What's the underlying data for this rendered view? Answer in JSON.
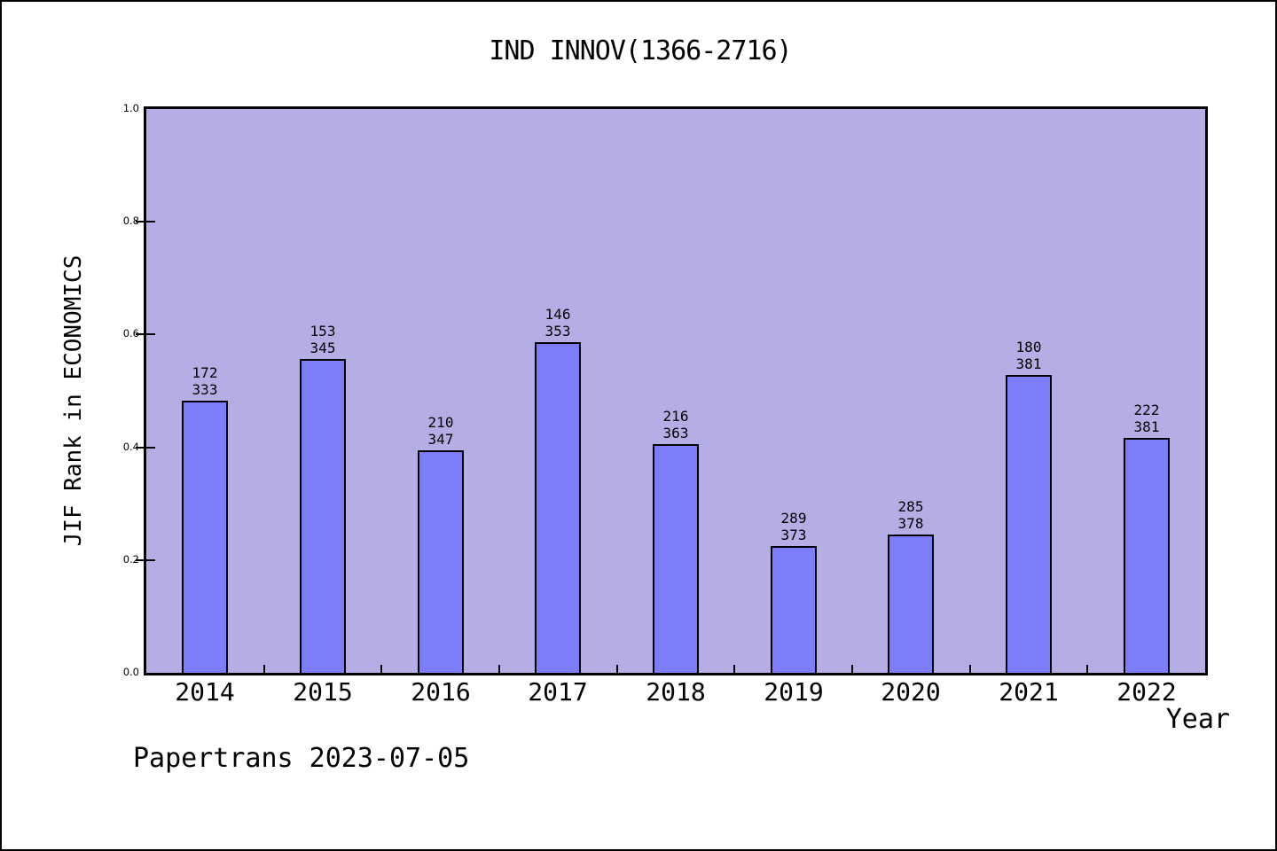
{
  "title": "IND INNOV(1366-2716)",
  "footer": "Papertrans 2023-07-05",
  "colors": {
    "bar_fill": "#7d7dfa",
    "bar_border": "#000000",
    "plot_background": "#b5aee4",
    "frame_border": "#000000",
    "text": "#000000"
  },
  "chart_data": {
    "type": "bar",
    "title": "IND INNOV(1366-2716)",
    "xlabel": "Year",
    "ylabel": "JIF Rank in ECONOMICS",
    "categories": [
      "2014",
      "2015",
      "2016",
      "2017",
      "2018",
      "2019",
      "2020",
      "2021",
      "2022"
    ],
    "values": [
      0.483,
      0.557,
      0.395,
      0.586,
      0.405,
      0.225,
      0.246,
      0.528,
      0.417
    ],
    "bar_top_labels": [
      [
        "172",
        "333"
      ],
      [
        "153",
        "345"
      ],
      [
        "210",
        "347"
      ],
      [
        "146",
        "353"
      ],
      [
        "216",
        "363"
      ],
      [
        "289",
        "373"
      ],
      [
        "285",
        "378"
      ],
      [
        "180",
        "381"
      ],
      [
        "222",
        "381"
      ]
    ],
    "ylim": [
      0.0,
      1.0
    ],
    "yticks": [
      0.0,
      0.2,
      0.4,
      0.6,
      0.8,
      1.0
    ],
    "ytick_labels": [
      "0.0",
      "0.2",
      "0.4",
      "0.6",
      "0.8",
      "1.0"
    ],
    "grid": false,
    "legend": false
  }
}
